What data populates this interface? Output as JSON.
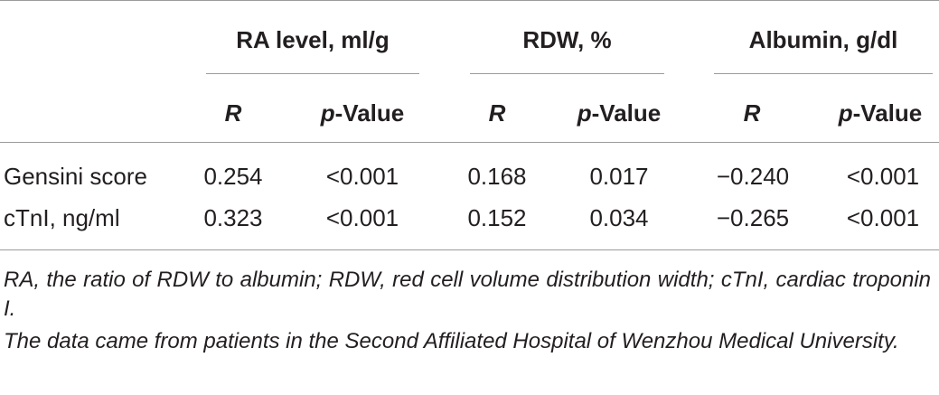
{
  "table": {
    "groups": [
      {
        "label": "RA level, ml/g"
      },
      {
        "label": "RDW, %"
      },
      {
        "label": "Albumin, g/dl"
      }
    ],
    "subheaders": {
      "r_label": "R",
      "p_prefix": "p",
      "p_suffix": "-Value"
    },
    "rows": [
      {
        "label": "Gensini score",
        "values": [
          "0.254",
          "<0.001",
          "0.168",
          "0.017",
          "−0.240",
          "<0.001"
        ]
      },
      {
        "label": "cTnI, ng/ml",
        "values": [
          "0.323",
          "<0.001",
          "0.152",
          "0.034",
          "−0.265",
          "<0.001"
        ]
      }
    ]
  },
  "footnotes": [
    "RA, the ratio of RDW to albumin; RDW, red cell volume distribution width; cTnI, cardiac troponin I.",
    "The data came from patients in the Second Affiliated Hospital of Wenzhou Medical University."
  ]
}
